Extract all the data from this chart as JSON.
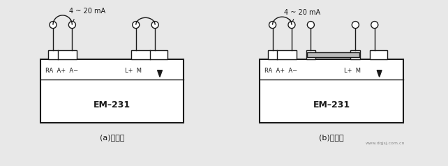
{
  "bg_color": "#e8e8e8",
  "line_color": "#1a1a1a",
  "box_fill": "#ffffff",
  "title_a": "(a)改线前",
  "title_b": "(b)改线后",
  "watermark": "www.dqjsj.com.cn",
  "label_current": "4 ~ 20 mA",
  "label_module": "EM–231",
  "fig_width": 6.42,
  "fig_height": 2.38,
  "dpi": 100
}
